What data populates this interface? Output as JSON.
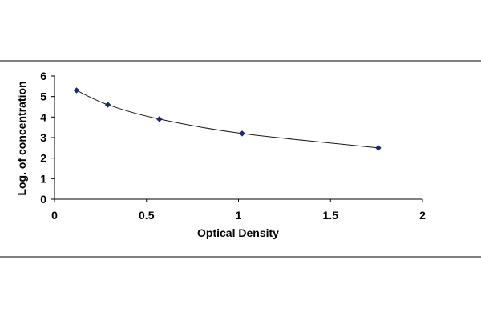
{
  "chart_data": {
    "type": "scatter",
    "xlabel": "Optical Density",
    "ylabel": "Log. of concentration",
    "xlim": [
      0,
      2
    ],
    "ylim": [
      0,
      6
    ],
    "x_ticks": [
      "0",
      "0.5",
      "1",
      "1.5",
      "2"
    ],
    "y_ticks": [
      "0",
      "1",
      "2",
      "3",
      "4",
      "5",
      "6"
    ],
    "grid": false,
    "legend": "none",
    "marker": "diamond",
    "colors": {
      "marker": "#1f2a6b",
      "curve": "#1a1a1a",
      "axis": "#000000",
      "frame": "#000000"
    },
    "series": [
      {
        "x": [
          0.12,
          0.29,
          0.57,
          1.02,
          1.76
        ],
        "y": [
          5.3,
          4.6,
          3.9,
          3.2,
          2.5
        ]
      }
    ]
  }
}
